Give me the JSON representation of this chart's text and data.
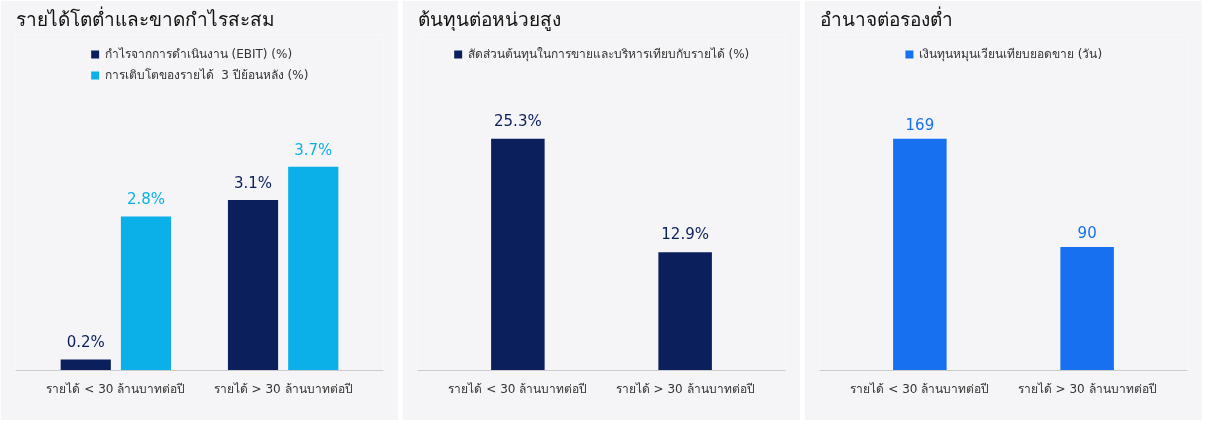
{
  "chart_data": [
    {
      "type": "bar",
      "title": "รายได้โตต่ำและขาดกำไรสะสม",
      "categories": [
        "รายได้ < 30 ล้านบาทต่อปี",
        "รายได้ > 30 ล้านบาทต่อปี"
      ],
      "series": [
        {
          "name": "กำไรจากการดำเนินงาน (EBIT) (%)",
          "color": "#0b1f5c",
          "values": [
            0.2,
            3.1
          ],
          "value_labels": [
            "0.2%",
            "3.1%"
          ]
        },
        {
          "name": "การเติบโตของรายได้  3 ปีย้อนหลัง (%)",
          "color": "#0bb0e8",
          "values": [
            2.8,
            3.7
          ],
          "value_labels": [
            "2.8%",
            "3.7%"
          ]
        }
      ],
      "legend": "top",
      "grid": false,
      "tick_labels": "x"
    },
    {
      "type": "bar",
      "title": "ต้นทุนต่อหน่วยสูง",
      "categories": [
        "รายได้ < 30 ล้านบาทต่อปี",
        "รายได้ > 30 ล้านบาทต่อปี"
      ],
      "series": [
        {
          "name": "สัดส่วนต้นทุนในการขายและบริหารเทียบกับรายได้ (%)",
          "color": "#0b1f5c",
          "values": [
            25.3,
            12.9
          ],
          "value_labels": [
            "25.3%",
            "12.9%"
          ]
        }
      ],
      "legend": "top",
      "grid": false,
      "tick_labels": "x"
    },
    {
      "type": "bar",
      "title": "อำนาจต่อรองต่ำ",
      "categories": [
        "รายได้ < 30 ล้านบาทต่อปี",
        "รายได้ > 30 ล้านบาทต่อปี"
      ],
      "series": [
        {
          "name": "เงินทุนหมุนเวียนเทียบยอดขาย (วัน)",
          "color": "#1670f0",
          "values": [
            169,
            90
          ]
        }
      ],
      "data_labels": true,
      "legend": "top",
      "grid": false,
      "tick_labels": "x"
    }
  ]
}
